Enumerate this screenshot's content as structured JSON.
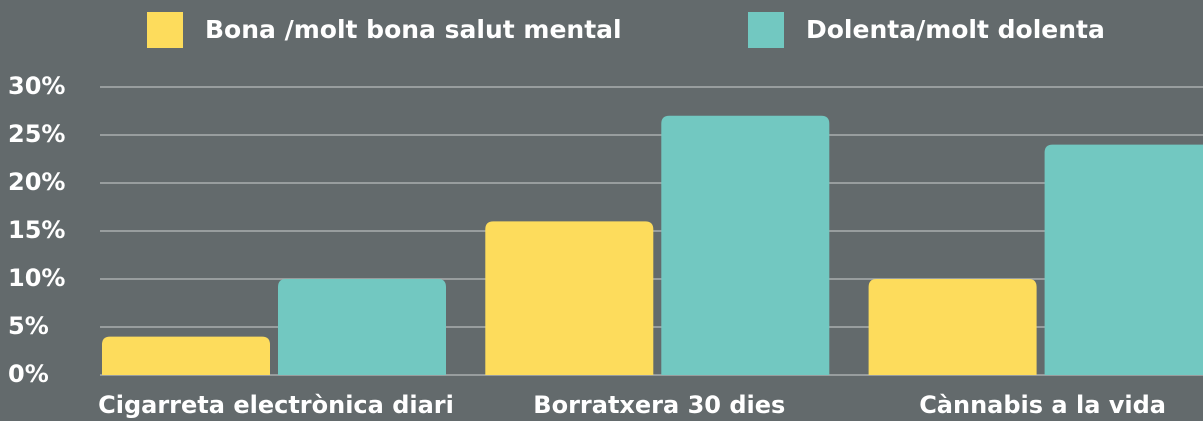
{
  "chart_data": {
    "type": "bar",
    "categories": [
      "Cigarreta electrònica diari",
      "Borratxera 30 dies",
      "Cànnabis a la vida"
    ],
    "series": [
      {
        "name": "Bona /molt bona salut mental",
        "color": "#fddc5c",
        "values": [
          4,
          16,
          10
        ]
      },
      {
        "name": "Dolenta/molt dolenta",
        "color": "#72c8c1",
        "values": [
          10,
          27,
          24
        ]
      }
    ],
    "ylim": [
      0,
      30
    ],
    "yticks": [
      {
        "value": 0,
        "label": "0%"
      },
      {
        "value": 5,
        "label": "5%"
      },
      {
        "value": 10,
        "label": "10%"
      },
      {
        "value": 15,
        "label": "15%"
      },
      {
        "value": 20,
        "label": "20%"
      },
      {
        "value": 25,
        "label": "25%"
      },
      {
        "value": 30,
        "label": "30%"
      }
    ],
    "grid": true,
    "legend": "top"
  }
}
